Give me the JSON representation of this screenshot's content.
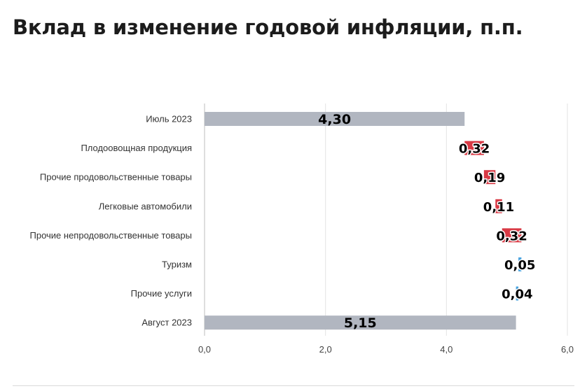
{
  "title": "Вклад в изменение годовой инфляции, п.п.",
  "chart_data": {
    "type": "waterfall",
    "title": "Вклад в изменение годовой инфляции, п.п.",
    "xlim": [
      0,
      6
    ],
    "x_ticks": [
      "0,0",
      "2,0",
      "4,0",
      "6,0"
    ],
    "x_tick_values": [
      0,
      2,
      4,
      6
    ],
    "grid": "vertical",
    "items": [
      {
        "label": "Июль 2023",
        "kind": "total",
        "value": 4.3,
        "display": "4,30"
      },
      {
        "label": "Плодоовощная продукция",
        "kind": "increase",
        "value": 0.32,
        "display": "0,32"
      },
      {
        "label": "Прочие продовольственные товары",
        "kind": "increase",
        "value": 0.19,
        "display": "0,19"
      },
      {
        "label": "Легковые автомобили",
        "kind": "increase",
        "value": 0.11,
        "display": "0,11"
      },
      {
        "label": "Прочие непродовольственные товары",
        "kind": "increase",
        "value": 0.32,
        "display": "0,32"
      },
      {
        "label": "Туризм",
        "kind": "decrease",
        "value": -0.05,
        "display": "0,05"
      },
      {
        "label": "Прочие услуги",
        "kind": "decrease",
        "value": -0.04,
        "display": "0,04"
      },
      {
        "label": "Август 2023",
        "kind": "total",
        "value": 5.15,
        "display": "5,15"
      }
    ],
    "colors": {
      "total": "#b1b6c0",
      "increase": "#d93a45",
      "decrease": "#4aa3df",
      "grid": "#e3e3e3",
      "axis": "#bdbdbd"
    }
  }
}
